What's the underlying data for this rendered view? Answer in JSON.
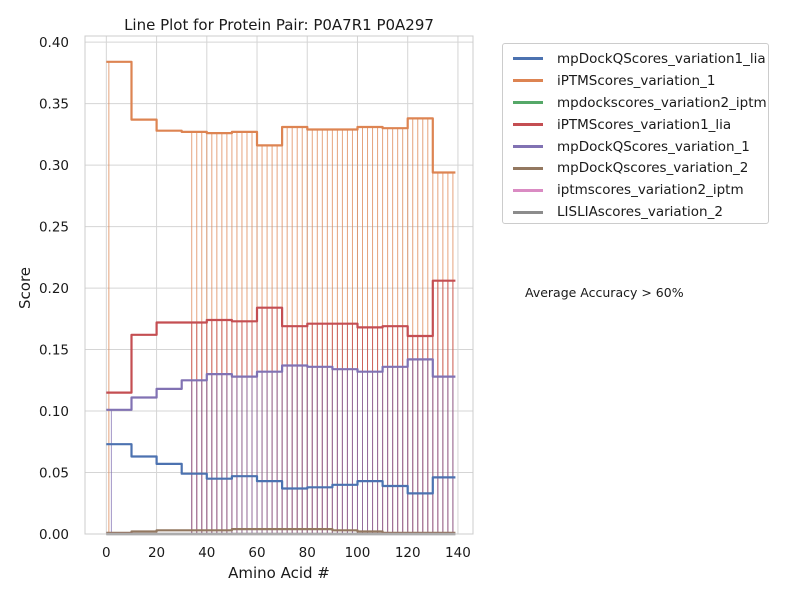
{
  "chart_data": {
    "type": "line",
    "title": "Line Plot for Protein Pair: P0A7R1 P0A297",
    "xlabel": "Amino Acid #",
    "ylabel": "Score",
    "xlim": [
      -8.5,
      146
    ],
    "ylim": [
      0,
      0.405
    ],
    "xticks": [
      0,
      20,
      40,
      60,
      80,
      100,
      120,
      140
    ],
    "yticks": [
      0.0,
      0.05,
      0.1,
      0.15,
      0.2,
      0.25,
      0.3,
      0.35,
      0.4
    ],
    "xtick_labels": [
      "0",
      "20",
      "40",
      "60",
      "80",
      "100",
      "120",
      "140"
    ],
    "ytick_labels": [
      "0.00",
      "0.05",
      "0.10",
      "0.15",
      "0.20",
      "0.25",
      "0.30",
      "0.35",
      "0.40"
    ],
    "grid": true,
    "legend_position": "outside-right-top",
    "annotation": "Average Accuracy > 60%",
    "series": [
      {
        "name": "mpDockQScores_variation1_lia",
        "color": "#4c72b0",
        "x": [
          0,
          10,
          20,
          30,
          40,
          50,
          60,
          70,
          80,
          90,
          100,
          110,
          120,
          130,
          139
        ],
        "y": [
          0.073,
          0.063,
          0.057,
          0.049,
          0.045,
          0.047,
          0.043,
          0.037,
          0.038,
          0.04,
          0.043,
          0.039,
          0.033,
          0.046,
          0.046
        ]
      },
      {
        "name": "iPTMScores_variation_1",
        "color": "#dd8452",
        "x": [
          0,
          10,
          20,
          30,
          40,
          50,
          60,
          70,
          80,
          90,
          100,
          110,
          120,
          130,
          139
        ],
        "y": [
          0.384,
          0.337,
          0.328,
          0.327,
          0.326,
          0.327,
          0.316,
          0.331,
          0.329,
          0.329,
          0.331,
          0.33,
          0.338,
          0.294,
          0.294
        ]
      },
      {
        "name": "mpdockscores_variation2_iptm",
        "color": "#55a868",
        "x": [
          0,
          139
        ],
        "y": [
          0.0,
          0.0
        ]
      },
      {
        "name": "iPTMScores_variation1_lia",
        "color": "#c44e52",
        "x": [
          0,
          10,
          20,
          30,
          40,
          50,
          60,
          70,
          80,
          90,
          100,
          110,
          120,
          130,
          139
        ],
        "y": [
          0.115,
          0.162,
          0.172,
          0.172,
          0.174,
          0.173,
          0.184,
          0.169,
          0.171,
          0.171,
          0.168,
          0.169,
          0.161,
          0.206,
          0.206
        ]
      },
      {
        "name": "mpDockQScores_variation_1",
        "color": "#8172b3",
        "x": [
          0,
          10,
          20,
          30,
          40,
          50,
          60,
          70,
          80,
          90,
          100,
          110,
          120,
          130,
          139
        ],
        "y": [
          0.101,
          0.111,
          0.118,
          0.125,
          0.13,
          0.128,
          0.132,
          0.137,
          0.136,
          0.134,
          0.132,
          0.136,
          0.142,
          0.128,
          0.128
        ]
      },
      {
        "name": "mpDockQscores_variation_2",
        "color": "#937860",
        "x": [
          0,
          10,
          20,
          30,
          40,
          50,
          60,
          70,
          80,
          90,
          100,
          110,
          120,
          130,
          139
        ],
        "y": [
          0.001,
          0.002,
          0.003,
          0.003,
          0.003,
          0.004,
          0.004,
          0.004,
          0.004,
          0.003,
          0.002,
          0.001,
          0.001,
          0.001,
          0.001
        ]
      },
      {
        "name": "iptmscores_variation2_iptm",
        "color": "#da8bc3",
        "x": [
          0,
          139
        ],
        "y": [
          0.0,
          0.0
        ]
      },
      {
        "name": "LISLIAscores_variation_2",
        "color": "#8c8c8c",
        "x": [
          0,
          139
        ],
        "y": [
          0.0,
          0.0
        ]
      }
    ]
  }
}
